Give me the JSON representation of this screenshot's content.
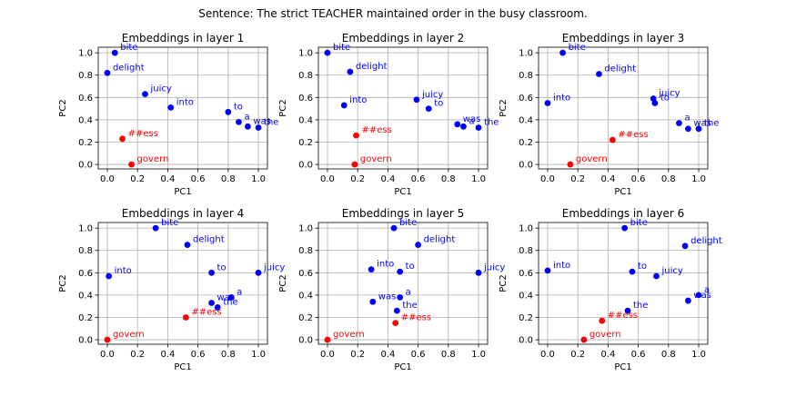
{
  "figure": {
    "suptitle": "Sentence: The strict TEACHER maintained order in the busy classroom."
  },
  "colors": {
    "other": "#0000ff",
    "highlight": "#ff0000"
  },
  "chart_data": [
    {
      "type": "scatter",
      "title": "Embeddings in layer 1",
      "xlabel": "PC1",
      "ylabel": "PC2",
      "xlim": [
        -0.06,
        1.06
      ],
      "ylim": [
        -0.04,
        1.05
      ],
      "xticks": [
        "0.0",
        "0.2",
        "0.4",
        "0.6",
        "0.8",
        "1.0"
      ],
      "yticks": [
        "0.0",
        "0.2",
        "0.4",
        "0.6",
        "0.8",
        "1.0"
      ],
      "grid": true,
      "points": [
        {
          "label": "bite",
          "x": 0.05,
          "y": 1.0,
          "group": "other"
        },
        {
          "label": "delight",
          "x": 0.0,
          "y": 0.82,
          "group": "other"
        },
        {
          "label": "juicy",
          "x": 0.25,
          "y": 0.63,
          "group": "other"
        },
        {
          "label": "into",
          "x": 0.42,
          "y": 0.51,
          "group": "other"
        },
        {
          "label": "to",
          "x": 0.8,
          "y": 0.47,
          "group": "other"
        },
        {
          "label": "a",
          "x": 0.87,
          "y": 0.38,
          "group": "other"
        },
        {
          "label": "was",
          "x": 0.93,
          "y": 0.34,
          "group": "other"
        },
        {
          "label": "the",
          "x": 1.0,
          "y": 0.33,
          "group": "other"
        },
        {
          "label": "##ess",
          "x": 0.1,
          "y": 0.23,
          "group": "highlight"
        },
        {
          "label": "govern",
          "x": 0.16,
          "y": 0.0,
          "group": "highlight"
        }
      ]
    },
    {
      "type": "scatter",
      "title": "Embeddings in layer 2",
      "xlabel": "PC1",
      "ylabel": "PC2",
      "xlim": [
        -0.06,
        1.06
      ],
      "ylim": [
        -0.04,
        1.05
      ],
      "xticks": [
        "0.0",
        "0.2",
        "0.4",
        "0.6",
        "0.8",
        "1.0"
      ],
      "yticks": [
        "0.0",
        "0.2",
        "0.4",
        "0.6",
        "0.8",
        "1.0"
      ],
      "grid": true,
      "points": [
        {
          "label": "bite",
          "x": 0.0,
          "y": 1.0,
          "group": "other"
        },
        {
          "label": "delight",
          "x": 0.15,
          "y": 0.83,
          "group": "other"
        },
        {
          "label": "into",
          "x": 0.11,
          "y": 0.53,
          "group": "other"
        },
        {
          "label": "juicy",
          "x": 0.59,
          "y": 0.58,
          "group": "other"
        },
        {
          "label": "to",
          "x": 0.67,
          "y": 0.5,
          "group": "other"
        },
        {
          "label": "was",
          "x": 0.86,
          "y": 0.36,
          "group": "other"
        },
        {
          "label": "a",
          "x": 0.9,
          "y": 0.34,
          "group": "other"
        },
        {
          "label": "the",
          "x": 1.0,
          "y": 0.33,
          "group": "other"
        },
        {
          "label": "##ess",
          "x": 0.19,
          "y": 0.26,
          "group": "highlight"
        },
        {
          "label": "govern",
          "x": 0.18,
          "y": 0.0,
          "group": "highlight"
        }
      ]
    },
    {
      "type": "scatter",
      "title": "Embeddings in layer 3",
      "xlabel": "PC1",
      "ylabel": "PC2",
      "xlim": [
        -0.06,
        1.06
      ],
      "ylim": [
        -0.04,
        1.05
      ],
      "xticks": [
        "0.0",
        "0.2",
        "0.4",
        "0.6",
        "0.8",
        "1.0"
      ],
      "yticks": [
        "0.0",
        "0.2",
        "0.4",
        "0.6",
        "0.8",
        "1.0"
      ],
      "grid": true,
      "points": [
        {
          "label": "bite",
          "x": 0.1,
          "y": 1.0,
          "group": "other"
        },
        {
          "label": "delight",
          "x": 0.34,
          "y": 0.81,
          "group": "other"
        },
        {
          "label": "into",
          "x": 0.0,
          "y": 0.55,
          "group": "other"
        },
        {
          "label": "juicy",
          "x": 0.7,
          "y": 0.59,
          "group": "other"
        },
        {
          "label": "to",
          "x": 0.71,
          "y": 0.55,
          "group": "other"
        },
        {
          "label": "a",
          "x": 0.87,
          "y": 0.37,
          "group": "other"
        },
        {
          "label": "was",
          "x": 0.93,
          "y": 0.32,
          "group": "other"
        },
        {
          "label": "the",
          "x": 1.0,
          "y": 0.32,
          "group": "other"
        },
        {
          "label": "##ess",
          "x": 0.43,
          "y": 0.22,
          "group": "highlight"
        },
        {
          "label": "govern",
          "x": 0.15,
          "y": 0.0,
          "group": "highlight"
        }
      ]
    },
    {
      "type": "scatter",
      "title": "Embeddings in layer 4",
      "xlabel": "PC1",
      "ylabel": "PC2",
      "xlim": [
        -0.06,
        1.06
      ],
      "ylim": [
        -0.04,
        1.05
      ],
      "xticks": [
        "0.0",
        "0.2",
        "0.4",
        "0.6",
        "0.8",
        "1.0"
      ],
      "yticks": [
        "0.0",
        "0.2",
        "0.4",
        "0.6",
        "0.8",
        "1.0"
      ],
      "grid": true,
      "points": [
        {
          "label": "bite",
          "x": 0.32,
          "y": 1.0,
          "group": "other"
        },
        {
          "label": "delight",
          "x": 0.53,
          "y": 0.85,
          "group": "other"
        },
        {
          "label": "into",
          "x": 0.01,
          "y": 0.57,
          "group": "other"
        },
        {
          "label": "to",
          "x": 0.69,
          "y": 0.6,
          "group": "other"
        },
        {
          "label": "juicy",
          "x": 1.0,
          "y": 0.6,
          "group": "other"
        },
        {
          "label": "a",
          "x": 0.82,
          "y": 0.38,
          "group": "other"
        },
        {
          "label": "was",
          "x": 0.69,
          "y": 0.33,
          "group": "other"
        },
        {
          "label": "the",
          "x": 0.73,
          "y": 0.29,
          "group": "other"
        },
        {
          "label": "##ess",
          "x": 0.52,
          "y": 0.2,
          "group": "highlight"
        },
        {
          "label": "govern",
          "x": 0.0,
          "y": 0.0,
          "group": "highlight"
        }
      ]
    },
    {
      "type": "scatter",
      "title": "Embeddings in layer 5",
      "xlabel": "PC1",
      "ylabel": "PC2",
      "xlim": [
        -0.06,
        1.06
      ],
      "ylim": [
        -0.04,
        1.05
      ],
      "xticks": [
        "0.0",
        "0.2",
        "0.4",
        "0.6",
        "0.8",
        "1.0"
      ],
      "yticks": [
        "0.0",
        "0.2",
        "0.4",
        "0.6",
        "0.8",
        "1.0"
      ],
      "grid": true,
      "points": [
        {
          "label": "bite",
          "x": 0.44,
          "y": 1.0,
          "group": "other"
        },
        {
          "label": "delight",
          "x": 0.6,
          "y": 0.85,
          "group": "other"
        },
        {
          "label": "into",
          "x": 0.29,
          "y": 0.63,
          "group": "other"
        },
        {
          "label": "to",
          "x": 0.48,
          "y": 0.61,
          "group": "other"
        },
        {
          "label": "juicy",
          "x": 1.0,
          "y": 0.6,
          "group": "other"
        },
        {
          "label": "was",
          "x": 0.3,
          "y": 0.34,
          "group": "other"
        },
        {
          "label": "a",
          "x": 0.48,
          "y": 0.38,
          "group": "other"
        },
        {
          "label": "the",
          "x": 0.46,
          "y": 0.26,
          "group": "other"
        },
        {
          "label": "##ess",
          "x": 0.45,
          "y": 0.15,
          "group": "highlight"
        },
        {
          "label": "govern",
          "x": 0.0,
          "y": 0.0,
          "group": "highlight"
        }
      ]
    },
    {
      "type": "scatter",
      "title": "Embeddings in layer 6",
      "xlabel": "PC1",
      "ylabel": "PC2",
      "xlim": [
        -0.06,
        1.06
      ],
      "ylim": [
        -0.04,
        1.05
      ],
      "xticks": [
        "0.0",
        "0.2",
        "0.4",
        "0.6",
        "0.8",
        "1.0"
      ],
      "yticks": [
        "0.0",
        "0.2",
        "0.4",
        "0.6",
        "0.8",
        "1.0"
      ],
      "grid": true,
      "points": [
        {
          "label": "bite",
          "x": 0.51,
          "y": 1.0,
          "group": "other"
        },
        {
          "label": "delight",
          "x": 0.91,
          "y": 0.84,
          "group": "other"
        },
        {
          "label": "into",
          "x": 0.0,
          "y": 0.62,
          "group": "other"
        },
        {
          "label": "to",
          "x": 0.56,
          "y": 0.61,
          "group": "other"
        },
        {
          "label": "juicy",
          "x": 0.72,
          "y": 0.57,
          "group": "other"
        },
        {
          "label": "was",
          "x": 0.93,
          "y": 0.35,
          "group": "other"
        },
        {
          "label": "a",
          "x": 1.0,
          "y": 0.4,
          "group": "other"
        },
        {
          "label": "the",
          "x": 0.53,
          "y": 0.26,
          "group": "other"
        },
        {
          "label": "##ess",
          "x": 0.36,
          "y": 0.17,
          "group": "highlight"
        },
        {
          "label": "govern",
          "x": 0.24,
          "y": 0.0,
          "group": "highlight"
        }
      ]
    }
  ]
}
